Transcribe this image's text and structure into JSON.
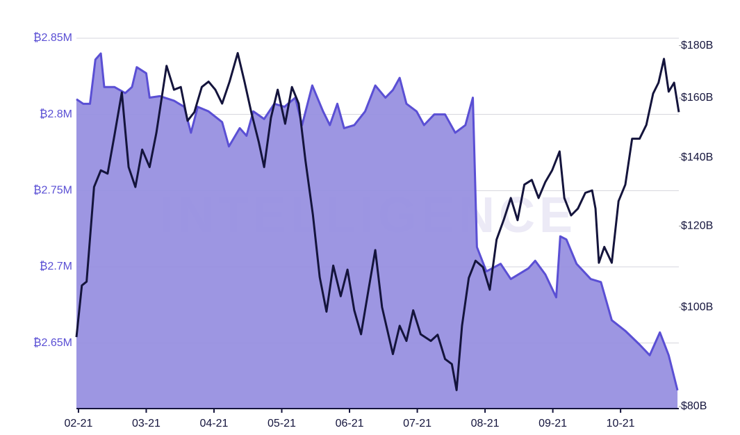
{
  "chart_data": {
    "type": "area-line",
    "watermark": "INTELLIGENCE",
    "xlim": [
      1.97,
      10.86
    ],
    "xticks": [
      {
        "value": 2,
        "label": "02-21"
      },
      {
        "value": 3,
        "label": "03-21"
      },
      {
        "value": 4,
        "label": "04-21"
      },
      {
        "value": 5,
        "label": "05-21"
      },
      {
        "value": 6,
        "label": "06-21"
      },
      {
        "value": 7,
        "label": "07-21"
      },
      {
        "value": 8,
        "label": "08-21"
      },
      {
        "value": 9,
        "label": "09-21"
      },
      {
        "value": 10,
        "label": "10-21"
      }
    ],
    "ylim": [
      2.607,
      2.85
    ],
    "yticks": [
      {
        "value": 2.65,
        "label": "₿2.65M"
      },
      {
        "value": 2.7,
        "label": "₿2.7M"
      },
      {
        "value": 2.75,
        "label": "₿2.75M"
      },
      {
        "value": 2.8,
        "label": "₿2.8M"
      },
      {
        "value": 2.85,
        "label": "₿2.85M"
      }
    ],
    "y2lim": [
      80,
      183
    ],
    "y2log": true,
    "y2ticks": [
      {
        "value": 80,
        "label": "$80B"
      },
      {
        "value": 100,
        "label": "$100B"
      },
      {
        "value": 120,
        "label": "$120B"
      },
      {
        "value": 140,
        "label": "$140B"
      },
      {
        "value": 160,
        "label": "$160B"
      },
      {
        "value": 180,
        "label": "$180B"
      }
    ],
    "grid": true,
    "series": [
      {
        "kind": "area",
        "color": "#5a4fd4",
        "fill": "#958de0",
        "x": [
          1.97,
          2.07,
          2.17,
          2.25,
          2.33,
          2.38,
          2.53,
          2.69,
          2.79,
          2.86,
          3.0,
          3.05,
          3.2,
          3.41,
          3.56,
          3.66,
          3.76,
          3.92,
          4.12,
          4.22,
          4.38,
          4.48,
          4.58,
          4.74,
          4.89,
          5.04,
          5.2,
          5.3,
          5.45,
          5.61,
          5.71,
          5.82,
          5.92,
          6.07,
          6.23,
          6.38,
          6.53,
          6.64,
          6.74,
          6.84,
          6.99,
          7.1,
          7.25,
          7.41,
          7.56,
          7.71,
          7.82,
          7.88,
          8.02,
          8.23,
          8.38,
          8.64,
          8.74,
          8.89,
          9.05,
          9.11,
          9.2,
          9.35,
          9.56,
          9.71,
          9.87,
          10.07,
          10.28,
          10.43,
          10.58,
          10.71,
          10.84
        ],
        "values": [
          2.81,
          2.807,
          2.807,
          2.836,
          2.84,
          2.818,
          2.818,
          2.814,
          2.818,
          2.831,
          2.827,
          2.811,
          2.812,
          2.809,
          2.805,
          2.788,
          2.805,
          2.802,
          2.795,
          2.779,
          2.791,
          2.786,
          2.802,
          2.797,
          2.807,
          2.805,
          2.811,
          2.793,
          2.819,
          2.802,
          2.793,
          2.807,
          2.791,
          2.793,
          2.802,
          2.819,
          2.811,
          2.816,
          2.824,
          2.807,
          2.802,
          2.793,
          2.8,
          2.8,
          2.788,
          2.793,
          2.811,
          2.713,
          2.697,
          2.702,
          2.692,
          2.699,
          2.704,
          2.695,
          2.68,
          2.72,
          2.718,
          2.702,
          2.692,
          2.69,
          2.665,
          2.658,
          2.649,
          2.642,
          2.657,
          2.642,
          2.619
        ]
      },
      {
        "kind": "line",
        "axis": "y2",
        "color": "#14143c",
        "x": [
          1.97,
          2.05,
          2.12,
          2.23,
          2.33,
          2.43,
          2.53,
          2.64,
          2.74,
          2.84,
          2.94,
          3.05,
          3.15,
          3.3,
          3.41,
          3.51,
          3.61,
          3.71,
          3.82,
          3.92,
          4.02,
          4.12,
          4.23,
          4.35,
          4.45,
          4.55,
          4.66,
          4.74,
          4.84,
          4.94,
          5.05,
          5.15,
          5.25,
          5.35,
          5.46,
          5.56,
          5.66,
          5.76,
          5.87,
          5.97,
          6.07,
          6.17,
          6.28,
          6.38,
          6.48,
          6.64,
          6.74,
          6.84,
          6.94,
          7.05,
          7.2,
          7.3,
          7.41,
          7.51,
          7.58,
          7.66,
          7.76,
          7.86,
          7.97,
          8.07,
          8.17,
          8.28,
          8.38,
          8.48,
          8.58,
          8.69,
          8.79,
          8.89,
          8.99,
          9.1,
          9.17,
          9.27,
          9.37,
          9.48,
          9.58,
          9.63,
          9.68,
          9.76,
          9.87,
          9.97,
          10.07,
          10.17,
          10.28,
          10.38,
          10.48,
          10.56,
          10.64,
          10.71,
          10.79,
          10.86
        ],
        "values": [
          93.5,
          105,
          105.9,
          131,
          136,
          135,
          147,
          162,
          137,
          131,
          142.5,
          137,
          148,
          172,
          163,
          164,
          152,
          155,
          164,
          166,
          163,
          158,
          166,
          177,
          166,
          155,
          145,
          137,
          153,
          163,
          151,
          164,
          158,
          139,
          123,
          107,
          99,
          109.8,
          102.5,
          108.8,
          99.3,
          94.1,
          104,
          113.7,
          100,
          90,
          95.9,
          92.7,
          99.3,
          94.1,
          92.7,
          94,
          89,
          88,
          83,
          95.9,
          106.8,
          111,
          109.4,
          104,
          116.4,
          121.9,
          127.8,
          121.6,
          131.7,
          133.1,
          127.8,
          132.5,
          136,
          141.9,
          127.8,
          122.9,
          124.8,
          129.3,
          130,
          124.8,
          110.5,
          114.5,
          110.5,
          126.9,
          131.7,
          146,
          146,
          150.6,
          161.6,
          165.6,
          174.7,
          162.3,
          165.6,
          155
        ]
      }
    ]
  }
}
